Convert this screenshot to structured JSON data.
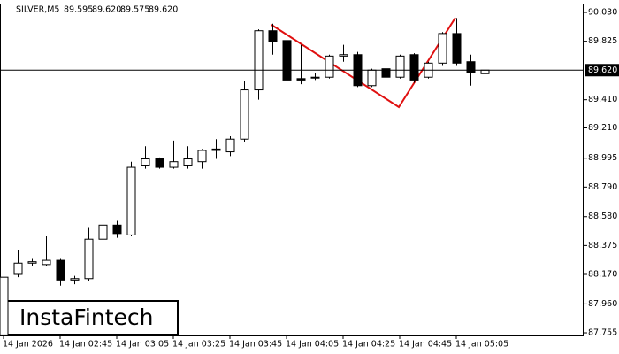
{
  "chart_data": {
    "type": "candlestick",
    "symbol": "SILVER,M5",
    "quote": [
      {
        "value": 89.595,
        "label": "89.595"
      },
      {
        "value": 89.62,
        "label": "89.620"
      },
      {
        "value": 89.575,
        "label": "89.575"
      },
      {
        "value": 89.62,
        "label": "89.620"
      }
    ],
    "watermark": "InstaFintech",
    "categories": [
      "14 Jan 2026",
      null,
      null,
      null,
      "14 Jan 02:45",
      null,
      null,
      null,
      "14 Jan 03:05",
      null,
      null,
      null,
      "14 Jan 03:25",
      null,
      null,
      null,
      "14 Jan 03:45",
      null,
      null,
      null,
      "14 Jan 04:05",
      null,
      null,
      null,
      "14 Jan 04:25",
      null,
      null,
      null,
      "14 Jan 04:45",
      null,
      null,
      null,
      "14 Jan 05:05",
      null,
      null
    ],
    "open": [
      87.74,
      88.17,
      88.25,
      88.24,
      88.27,
      88.13,
      88.14,
      88.42,
      88.52,
      88.45,
      88.94,
      88.99,
      88.93,
      88.94,
      88.97,
      89.06,
      89.04,
      89.13,
      89.48,
      89.9,
      89.83,
      89.56,
      89.57,
      89.57,
      89.72,
      89.73,
      89.51,
      89.63,
      89.57,
      89.73,
      89.57,
      89.67,
      89.88,
      89.68,
      89.595
    ],
    "high": [
      88.27,
      88.34,
      88.28,
      88.44,
      88.28,
      88.16,
      88.5,
      88.55,
      88.55,
      88.97,
      89.08,
      89.0,
      89.12,
      89.08,
      89.06,
      89.13,
      89.15,
      89.54,
      89.91,
      89.95,
      89.94,
      89.8,
      89.6,
      89.73,
      89.8,
      89.75,
      89.63,
      89.64,
      89.73,
      89.74,
      89.68,
      89.89,
      89.99,
      89.73,
      89.62
    ],
    "low": [
      87.73,
      88.15,
      88.23,
      88.23,
      88.09,
      88.1,
      88.12,
      88.33,
      88.43,
      88.44,
      88.92,
      88.92,
      88.92,
      88.92,
      88.92,
      88.99,
      89.01,
      89.11,
      89.41,
      89.73,
      89.55,
      89.52,
      89.55,
      89.56,
      89.68,
      89.5,
      89.5,
      89.54,
      89.56,
      89.53,
      89.56,
      89.65,
      89.65,
      89.51,
      89.575
    ],
    "close": [
      88.15,
      88.25,
      88.26,
      88.27,
      88.13,
      88.14,
      88.42,
      88.52,
      88.46,
      88.93,
      88.99,
      88.93,
      88.97,
      88.99,
      89.05,
      89.05,
      89.13,
      89.48,
      89.9,
      89.82,
      89.55,
      89.55,
      89.57,
      89.72,
      89.73,
      89.51,
      89.62,
      89.57,
      89.72,
      89.55,
      89.67,
      89.88,
      89.67,
      89.6,
      89.62
    ],
    "current_price": {
      "value": 89.62,
      "label": "89.620"
    },
    "ylim": [
      87.73,
      90.093
    ],
    "yticks": [
      {
        "value": 90.03,
        "label": "90.030"
      },
      {
        "value": 89.825,
        "label": "89.825"
      },
      {
        "value": 89.41,
        "label": "89.410"
      },
      {
        "value": 89.21,
        "label": "89.210"
      },
      {
        "value": 88.995,
        "label": "88.995"
      },
      {
        "value": 88.79,
        "label": "88.790"
      },
      {
        "value": 88.58,
        "label": "88.580"
      },
      {
        "value": 88.375,
        "label": "88.375"
      },
      {
        "value": 88.17,
        "label": "88.170"
      },
      {
        "value": 87.96,
        "label": "87.960"
      },
      {
        "value": 87.755,
        "label": "87.755"
      }
    ],
    "grid": false
  }
}
